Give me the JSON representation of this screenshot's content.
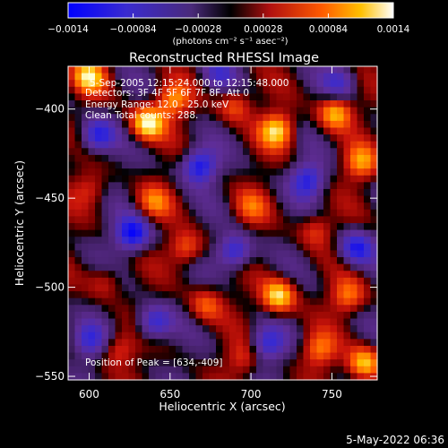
{
  "colorbar": {
    "ticks": [
      "−0.0014",
      "−0.00084",
      "−0.00028",
      "0.00028",
      "0.00084",
      "0.0014"
    ],
    "range": [
      -0.0014,
      0.0014
    ],
    "unit_label": "(photons cm⁻² s⁻¹ asec⁻²)"
  },
  "chart_data": {
    "type": "heatmap",
    "title": "Reconstructed RHESSI Image",
    "xlabel": "Heliocentric X (arcsec)",
    "ylabel": "Heliocentric Y (arcsec)",
    "xlim": [
      587,
      778
    ],
    "ylim": [
      -552,
      -376
    ],
    "x_ticks": [
      600,
      650,
      700,
      750
    ],
    "y_ticks": [
      -400,
      -450,
      -500,
      -550
    ],
    "x_tick_labels": [
      "600",
      "650",
      "700",
      "750"
    ],
    "y_tick_labels": [
      "−400",
      "−450",
      "−500",
      "−550"
    ],
    "annotations": [
      "5-Sep-2005 12:15:24.000 to 12:15:48.000",
      "Detectors: 3F 4F 5F 6F 7F 8F, Att 0",
      "Energy Range: 12.0 - 25.0 keV",
      "Clean     Total counts: 288."
    ],
    "peak_label": "Position of Peak = [634,-409]",
    "peak": [
      634,
      -409
    ],
    "value_range": [
      -0.0014,
      0.0014
    ],
    "hotspots": [
      {
        "x": 600,
        "y": -382,
        "v": 0.0011
      },
      {
        "x": 636,
        "y": -408,
        "v": 0.0014
      },
      {
        "x": 652,
        "y": -395,
        "v": 0.0009
      },
      {
        "x": 716,
        "y": -412,
        "v": 0.0012
      },
      {
        "x": 690,
        "y": -398,
        "v": 0.0007
      },
      {
        "x": 752,
        "y": -402,
        "v": 0.0011
      },
      {
        "x": 768,
        "y": -430,
        "v": 0.0009
      },
      {
        "x": 640,
        "y": -452,
        "v": 0.0007
      },
      {
        "x": 700,
        "y": -455,
        "v": 0.0006
      },
      {
        "x": 660,
        "y": -478,
        "v": 0.0008
      },
      {
        "x": 740,
        "y": -468,
        "v": 0.0006
      },
      {
        "x": 717,
        "y": -505,
        "v": 0.0013
      },
      {
        "x": 672,
        "y": -510,
        "v": 0.0007
      },
      {
        "x": 610,
        "y": -497,
        "v": 0.0005
      },
      {
        "x": 760,
        "y": -505,
        "v": 0.0008
      },
      {
        "x": 770,
        "y": -543,
        "v": 0.0012
      },
      {
        "x": 742,
        "y": -535,
        "v": 0.0008
      },
      {
        "x": 618,
        "y": -535,
        "v": 0.0006
      },
      {
        "x": 695,
        "y": -540,
        "v": 0.0005
      },
      {
        "x": 601,
        "y": -445,
        "v": 0.0005
      },
      {
        "x": 605,
        "y": -415,
        "v": -0.0011
      },
      {
        "x": 668,
        "y": -432,
        "v": -0.0012
      },
      {
        "x": 735,
        "y": -440,
        "v": -0.001
      },
      {
        "x": 627,
        "y": -470,
        "v": -0.0013
      },
      {
        "x": 690,
        "y": -480,
        "v": -0.0011
      },
      {
        "x": 640,
        "y": -520,
        "v": -0.001
      },
      {
        "x": 710,
        "y": -532,
        "v": -0.0009
      },
      {
        "x": 765,
        "y": -478,
        "v": -0.0011
      },
      {
        "x": 600,
        "y": -530,
        "v": -0.0008
      },
      {
        "x": 755,
        "y": -385,
        "v": -0.0007
      },
      {
        "x": 680,
        "y": -380,
        "v": -0.0006
      }
    ]
  },
  "footer": {
    "timestamp": "5-May-2022 06:36"
  }
}
